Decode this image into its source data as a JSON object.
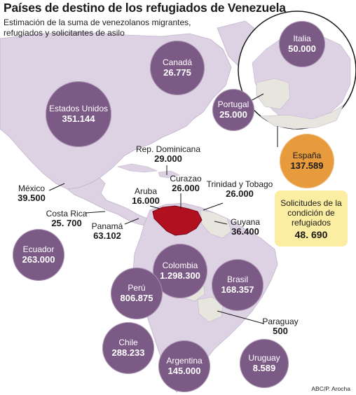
{
  "header": {
    "title": "Países de destino de los refugiados de Venezuela",
    "subtitle": "Estimación de la suma de venezolanos migrantes, refugiados y solicitantes de asilo"
  },
  "colors": {
    "ocean": "#ffffff",
    "land": "#ddd2e3",
    "land_dark": "#cdbfd6",
    "bubble": "#7b5a86",
    "spain_bubble": "#e79b3c",
    "asylum_box": "#fbeda1",
    "venezuela": "#b01020",
    "neighbor_land": "#e7e6de"
  },
  "bubbles": {
    "canada": {
      "name": "Canadá",
      "value": "26.775"
    },
    "usa": {
      "name": "Estados Unidos",
      "value": "351.144"
    },
    "italia": {
      "name": "Italia",
      "value": "50.000"
    },
    "portugal": {
      "name": "Portugal",
      "value": "25.000"
    },
    "espana": {
      "name": "España",
      "value": "137.589"
    },
    "ecuador": {
      "name": "Ecuador",
      "value": "263.000"
    },
    "colombia": {
      "name": "Colombia",
      "value": "1.298.300"
    },
    "brasil": {
      "name": "Brasil",
      "value": "168.357"
    },
    "peru": {
      "name": "Perú",
      "value": "806.875"
    },
    "chile": {
      "name": "Chile",
      "value": "288.233"
    },
    "argentina": {
      "name": "Argentina",
      "value": "145.000"
    },
    "uruguay": {
      "name": "Uruguay",
      "value": "8.589"
    }
  },
  "labels": {
    "rep_dominicana": {
      "name": "Rep. Dominicana",
      "value": "29.000"
    },
    "curazao": {
      "name": "Curazao",
      "value": "26.000"
    },
    "trinidad": {
      "name": "Trinidad y Tobago",
      "value": "26.000"
    },
    "aruba": {
      "name": "Aruba",
      "value": "16.000"
    },
    "mexico": {
      "name": "México",
      "value": "39.500"
    },
    "costa_rica": {
      "name": "Costa Rica",
      "value": "25. 700"
    },
    "panama": {
      "name": "Panamá",
      "value": "63.102"
    },
    "guyana": {
      "name": "Guyana",
      "value": "36.400"
    },
    "paraguay": {
      "name": "Paraguay",
      "value": "500"
    }
  },
  "asylum": {
    "text": "Solicitudes de la condición de refugiados",
    "value": "48. 690"
  },
  "credit": "ABC/P. Arocha"
}
